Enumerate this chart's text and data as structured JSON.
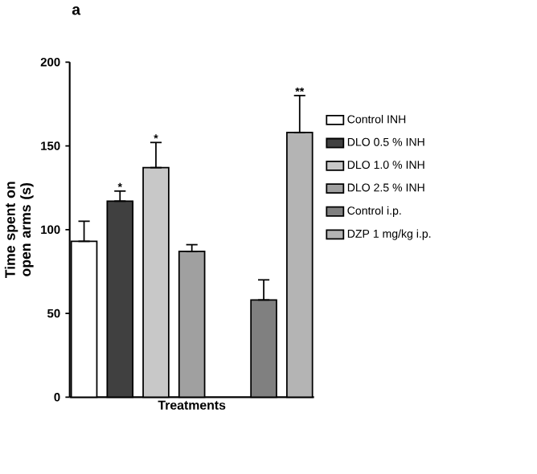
{
  "chart_data": {
    "type": "bar",
    "title": "a",
    "xlabel": "Treatments",
    "ylabel": "Time spent on open arms (s)",
    "categories": [
      null,
      null,
      null,
      null,
      null,
      null,
      null
    ],
    "series": [
      {
        "name": "Control INH",
        "color": "#ffffff",
        "values": [
          93,
          null,
          null,
          null,
          null,
          null,
          null
        ],
        "errors": [
          [
            93,
            105
          ],
          null,
          null,
          null,
          null,
          null,
          null
        ]
      },
      {
        "name": "DLO 0.5 % INH",
        "color": "#404040",
        "values": [
          null,
          117,
          null,
          null,
          null,
          null,
          null
        ],
        "errors": [
          null,
          [
            117,
            123
          ],
          null,
          null,
          null,
          null,
          null
        ]
      },
      {
        "name": "DLO 1.0 % INH",
        "color": "#c8c8c8",
        "values": [
          null,
          null,
          137,
          null,
          null,
          null,
          null
        ],
        "errors": [
          null,
          null,
          [
            137,
            152
          ],
          null,
          null,
          null,
          null
        ]
      },
      {
        "name": "DLO 2.5 % INH",
        "color": "#a0a0a0",
        "values": [
          null,
          null,
          null,
          87,
          null,
          null,
          null
        ],
        "errors": [
          null,
          null,
          null,
          [
            87,
            91
          ],
          null,
          null,
          null
        ]
      },
      {
        "name": "Control i.p.",
        "color": "#808080",
        "values": [
          null,
          null,
          null,
          null,
          null,
          58,
          null
        ],
        "errors": [
          null,
          null,
          null,
          null,
          null,
          [
            58,
            70
          ],
          null
        ]
      },
      {
        "name": "DZP 1 mg/kg i.p.",
        "color": "#b4b4b4",
        "values": [
          null,
          null,
          null,
          null,
          null,
          null,
          158
        ],
        "errors": [
          null,
          null,
          null,
          null,
          null,
          null,
          [
            158,
            180
          ]
        ]
      }
    ],
    "annotations": [
      {
        "text": "*",
        "y": 126
      },
      {
        "text": "*",
        "y": 155
      },
      {
        "text": "**",
        "y": 183
      }
    ],
    "ylim": [
      0,
      200
    ],
    "yticks": [
      0,
      50,
      100,
      150,
      200
    ],
    "legend": "right"
  }
}
